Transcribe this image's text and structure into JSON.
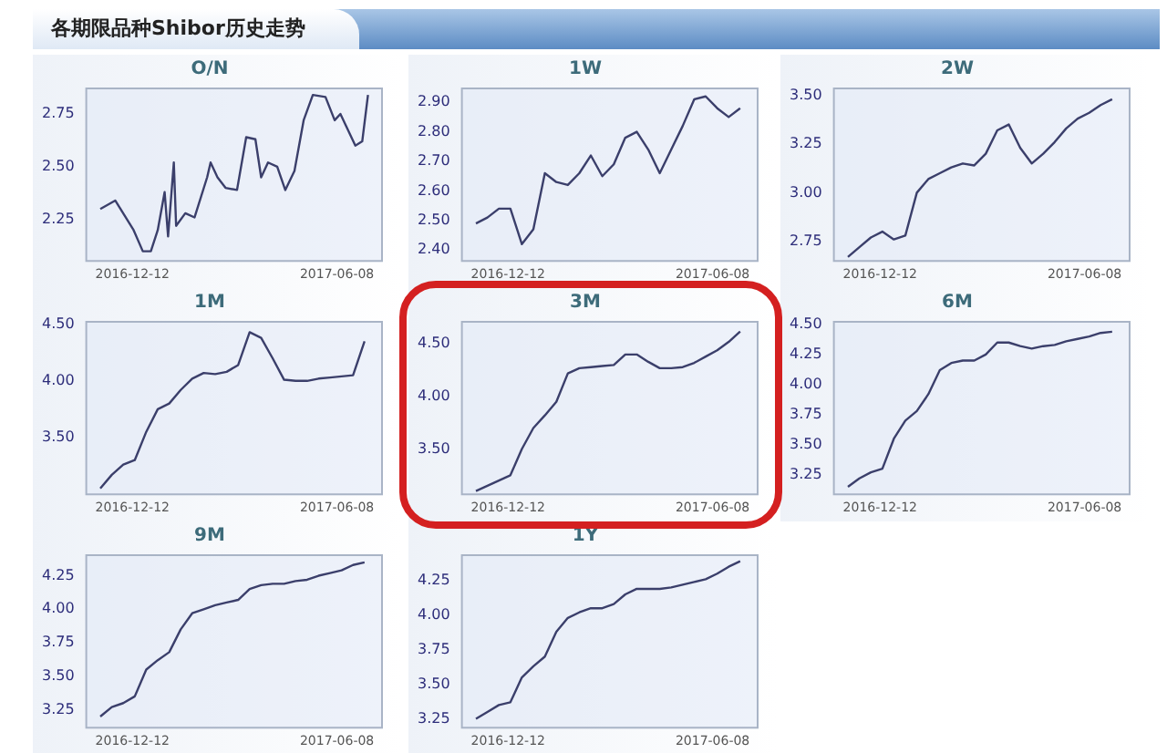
{
  "chart_data": [
    {
      "type": "line",
      "title": "O/N",
      "annotations": [
        "各期限品种Shibor历史走势"
      ],
      "marker": "none",
      "color": "#3b3f6b",
      "x": [
        "2016-11-14",
        "2016-11-27",
        "2016-12-05",
        "2016-12-13",
        "2016-12-21",
        "2016-12-28",
        "2017-01-03",
        "2017-01-09",
        "2017-01-12",
        "2017-01-17",
        "2017-01-19",
        "2017-01-27",
        "2017-02-04",
        "2017-02-15",
        "2017-02-18",
        "2017-02-24",
        "2017-03-03",
        "2017-03-13",
        "2017-03-21",
        "2017-03-29",
        "2017-04-03",
        "2017-04-09",
        "2017-04-17",
        "2017-04-24",
        "2017-05-02",
        "2017-05-10",
        "2017-05-18",
        "2017-05-29",
        "2017-06-06",
        "2017-06-11",
        "2017-06-24",
        "2017-06-30",
        "2017-07-05"
      ],
      "values": [
        2.3,
        2.34,
        2.27,
        2.2,
        2.1,
        2.1,
        2.2,
        2.38,
        2.17,
        2.52,
        2.22,
        2.28,
        2.26,
        2.45,
        2.52,
        2.45,
        2.4,
        2.39,
        2.64,
        2.63,
        2.45,
        2.52,
        2.5,
        2.39,
        2.48,
        2.72,
        2.84,
        2.83,
        2.72,
        2.75,
        2.6,
        2.62,
        2.84
      ],
      "xlim": [
        "2016-11-01",
        "2017-07-18"
      ],
      "xticks": [
        {
          "value": "2016-12-12",
          "label": "2016-12-12"
        },
        {
          "value": "2017-06-08",
          "label": "2017-06-08"
        }
      ],
      "ylim": [
        2.05,
        2.875
      ],
      "yticks": [
        2.25,
        {
          "value": 2.5,
          "label": "2.50"
        },
        2.75
      ]
    },
    {
      "type": "line",
      "title": "1W",
      "marker": "none",
      "color": "#3b3f6b",
      "x": [
        "2016-11-14",
        "2016-11-24",
        "2016-12-04",
        "2016-12-14",
        "2016-12-24",
        "2017-01-03",
        "2017-01-13",
        "2017-01-23",
        "2017-02-02",
        "2017-02-12",
        "2017-02-22",
        "2017-03-04",
        "2017-03-14",
        "2017-03-24",
        "2017-04-03",
        "2017-04-13",
        "2017-04-23",
        "2017-05-03",
        "2017-05-13",
        "2017-05-23",
        "2017-06-02",
        "2017-06-12",
        "2017-06-22",
        "2017-07-02"
      ],
      "values": [
        2.49,
        2.51,
        2.54,
        2.54,
        2.42,
        2.47,
        2.66,
        2.63,
        2.62,
        2.66,
        2.72,
        2.65,
        2.69,
        2.78,
        2.8,
        2.74,
        2.66,
        2.74,
        2.82,
        2.91,
        2.92,
        2.88,
        2.85,
        2.88
      ],
      "xlim": [
        "2016-11-01",
        "2017-07-18"
      ],
      "xticks": [
        {
          "value": "2016-12-12",
          "label": "2016-12-12"
        },
        {
          "value": "2017-06-08",
          "label": "2017-06-08"
        }
      ],
      "ylim": [
        2.36,
        2.95
      ],
      "yticks": [
        {
          "value": 2.4,
          "label": "2.40"
        },
        {
          "value": 2.5,
          "label": "2.50"
        },
        {
          "value": 2.6,
          "label": "2.60"
        },
        {
          "value": 2.7,
          "label": "2.70"
        },
        {
          "value": 2.8,
          "label": "2.80"
        },
        {
          "value": 2.9,
          "label": "2.90"
        }
      ]
    },
    {
      "type": "line",
      "title": "2W",
      "marker": "none",
      "color": "#3b3f6b",
      "x": [
        "2016-11-14",
        "2016-11-24",
        "2016-12-04",
        "2016-12-14",
        "2016-12-24",
        "2017-01-03",
        "2017-01-13",
        "2017-01-23",
        "2017-02-02",
        "2017-02-12",
        "2017-02-22",
        "2017-03-04",
        "2017-03-14",
        "2017-03-24",
        "2017-04-03",
        "2017-04-13",
        "2017-04-23",
        "2017-05-03",
        "2017-05-13",
        "2017-05-23",
        "2017-06-02",
        "2017-06-12",
        "2017-06-22",
        "2017-07-02"
      ],
      "values": [
        2.67,
        2.72,
        2.77,
        2.8,
        2.76,
        2.78,
        3.0,
        3.07,
        3.1,
        3.13,
        3.15,
        3.14,
        3.2,
        3.32,
        3.35,
        3.23,
        3.15,
        3.2,
        3.26,
        3.33,
        3.38,
        3.41,
        3.45,
        3.48
      ],
      "xlim": [
        "2016-11-01",
        "2017-07-18"
      ],
      "xticks": [
        {
          "value": "2016-12-12",
          "label": "2016-12-12"
        },
        {
          "value": "2017-06-08",
          "label": "2017-06-08"
        }
      ],
      "ylim": [
        2.645,
        3.54
      ],
      "yticks": [
        2.75,
        {
          "value": 3,
          "label": "3.00"
        },
        3.25,
        {
          "value": 3.5,
          "label": "3.50"
        }
      ]
    },
    {
      "type": "line",
      "title": "1M",
      "marker": "none",
      "color": "#3b3f6b",
      "x": [
        "2016-11-14",
        "2016-11-24",
        "2016-12-04",
        "2016-12-14",
        "2016-12-24",
        "2017-01-03",
        "2017-01-13",
        "2017-01-23",
        "2017-02-02",
        "2017-02-12",
        "2017-02-22",
        "2017-03-04",
        "2017-03-14",
        "2017-03-24",
        "2017-04-03",
        "2017-04-13",
        "2017-04-23",
        "2017-05-03",
        "2017-05-13",
        "2017-05-23",
        "2017-06-02",
        "2017-06-12",
        "2017-06-22",
        "2017-07-02"
      ],
      "values": [
        3.05,
        3.17,
        3.26,
        3.3,
        3.55,
        3.75,
        3.8,
        3.92,
        4.02,
        4.07,
        4.06,
        4.08,
        4.14,
        4.43,
        4.38,
        4.2,
        4.01,
        4.0,
        4.0,
        4.02,
        4.03,
        4.04,
        4.05,
        4.35
      ],
      "xlim": [
        "2016-11-01",
        "2017-07-18"
      ],
      "xticks": [
        {
          "value": "2016-12-12",
          "label": "2016-12-12"
        },
        {
          "value": "2017-06-08",
          "label": "2017-06-08"
        }
      ],
      "ylim": [
        2.99,
        4.53
      ],
      "yticks": [
        {
          "value": 3.5,
          "label": "3.50"
        },
        {
          "value": 4,
          "label": "4.00"
        },
        {
          "value": 4.5,
          "label": "4.50"
        }
      ]
    },
    {
      "type": "line",
      "title": "3M",
      "marker": "none",
      "color": "#3b3f6b",
      "x": [
        "2016-11-14",
        "2016-11-24",
        "2016-12-04",
        "2016-12-14",
        "2016-12-24",
        "2017-01-03",
        "2017-01-13",
        "2017-01-23",
        "2017-02-02",
        "2017-02-12",
        "2017-02-22",
        "2017-03-04",
        "2017-03-14",
        "2017-03-24",
        "2017-04-03",
        "2017-04-13",
        "2017-04-23",
        "2017-05-03",
        "2017-05-13",
        "2017-05-23",
        "2017-06-02",
        "2017-06-12",
        "2017-06-22",
        "2017-07-02"
      ],
      "values": [
        3.1,
        3.15,
        3.2,
        3.25,
        3.5,
        3.7,
        3.82,
        3.95,
        4.22,
        4.27,
        4.28,
        4.29,
        4.3,
        4.4,
        4.4,
        4.33,
        4.27,
        4.27,
        4.28,
        4.32,
        4.38,
        4.44,
        4.52,
        4.62
      ],
      "xlim": [
        "2016-11-01",
        "2017-07-18"
      ],
      "xticks": [
        {
          "value": "2016-12-12",
          "label": "2016-12-12"
        },
        {
          "value": "2017-06-08",
          "label": "2017-06-08"
        }
      ],
      "ylim": [
        3.06,
        4.72
      ],
      "yticks": [
        {
          "value": 3.5,
          "label": "3.50"
        },
        {
          "value": 4,
          "label": "4.00"
        },
        {
          "value": 4.5,
          "label": "4.50"
        }
      ]
    },
    {
      "type": "line",
      "title": "6M",
      "marker": "none",
      "color": "#3b3f6b",
      "x": [
        "2016-11-14",
        "2016-11-24",
        "2016-12-04",
        "2016-12-14",
        "2016-12-24",
        "2017-01-03",
        "2017-01-13",
        "2017-01-23",
        "2017-02-02",
        "2017-02-12",
        "2017-02-22",
        "2017-03-04",
        "2017-03-14",
        "2017-03-24",
        "2017-04-03",
        "2017-04-13",
        "2017-04-23",
        "2017-05-03",
        "2017-05-13",
        "2017-05-23",
        "2017-06-02",
        "2017-06-12",
        "2017-06-22",
        "2017-07-02"
      ],
      "values": [
        3.15,
        3.22,
        3.27,
        3.3,
        3.55,
        3.7,
        3.78,
        3.92,
        4.12,
        4.18,
        4.2,
        4.2,
        4.25,
        4.35,
        4.35,
        4.32,
        4.3,
        4.32,
        4.33,
        4.36,
        4.38,
        4.4,
        4.43,
        4.44
      ],
      "xlim": [
        "2016-11-01",
        "2017-07-18"
      ],
      "xticks": [
        {
          "value": "2016-12-12",
          "label": "2016-12-12"
        },
        {
          "value": "2017-06-08",
          "label": "2017-06-08"
        }
      ],
      "ylim": [
        3.08,
        4.53
      ],
      "yticks": [
        3.25,
        {
          "value": 3.5,
          "label": "3.50"
        },
        3.75,
        {
          "value": 4,
          "label": "4.00"
        },
        4.25,
        {
          "value": 4.5,
          "label": "4.50"
        }
      ]
    },
    {
      "type": "line",
      "title": "9M",
      "marker": "none",
      "color": "#3b3f6b",
      "x": [
        "2016-11-14",
        "2016-11-24",
        "2016-12-04",
        "2016-12-14",
        "2016-12-24",
        "2017-01-03",
        "2017-01-13",
        "2017-01-23",
        "2017-02-02",
        "2017-02-12",
        "2017-02-22",
        "2017-03-04",
        "2017-03-14",
        "2017-03-24",
        "2017-04-03",
        "2017-04-13",
        "2017-04-23",
        "2017-05-03",
        "2017-05-13",
        "2017-05-23",
        "2017-06-02",
        "2017-06-12",
        "2017-06-22",
        "2017-07-02"
      ],
      "values": [
        3.2,
        3.27,
        3.3,
        3.35,
        3.55,
        3.62,
        3.68,
        3.85,
        3.97,
        4.0,
        4.03,
        4.05,
        4.07,
        4.15,
        4.18,
        4.19,
        4.19,
        4.21,
        4.22,
        4.25,
        4.27,
        4.29,
        4.33,
        4.35
      ],
      "xlim": [
        "2016-11-01",
        "2017-07-18"
      ],
      "xticks": [
        {
          "value": "2016-12-12",
          "label": "2016-12-12"
        },
        {
          "value": "2017-06-08",
          "label": "2017-06-08"
        }
      ],
      "ylim": [
        3.11,
        4.41
      ],
      "yticks": [
        3.25,
        {
          "value": 3.5,
          "label": "3.50"
        },
        3.75,
        {
          "value": 4,
          "label": "4.00"
        },
        4.25
      ]
    },
    {
      "type": "line",
      "title": "1Y",
      "marker": "none",
      "color": "#3b3f6b",
      "x": [
        "2016-11-14",
        "2016-11-24",
        "2016-12-04",
        "2016-12-14",
        "2016-12-24",
        "2017-01-03",
        "2017-01-13",
        "2017-01-23",
        "2017-02-02",
        "2017-02-12",
        "2017-02-22",
        "2017-03-04",
        "2017-03-14",
        "2017-03-24",
        "2017-04-03",
        "2017-04-13",
        "2017-04-23",
        "2017-05-03",
        "2017-05-13",
        "2017-05-23",
        "2017-06-02",
        "2017-06-12",
        "2017-06-22",
        "2017-07-02"
      ],
      "values": [
        3.25,
        3.3,
        3.35,
        3.37,
        3.55,
        3.63,
        3.7,
        3.88,
        3.98,
        4.02,
        4.05,
        4.05,
        4.08,
        4.15,
        4.19,
        4.19,
        4.19,
        4.2,
        4.22,
        4.24,
        4.26,
        4.3,
        4.35,
        4.39
      ],
      "xlim": [
        "2016-11-01",
        "2017-07-18"
      ],
      "xticks": [
        {
          "value": "2016-12-12",
          "label": "2016-12-12"
        },
        {
          "value": "2017-06-08",
          "label": "2017-06-08"
        }
      ],
      "ylim": [
        3.18,
        4.44
      ],
      "yticks": [
        3.25,
        {
          "value": 3.5,
          "label": "3.50"
        },
        3.75,
        {
          "value": 4,
          "label": "4.00"
        },
        4.25
      ]
    }
  ]
}
